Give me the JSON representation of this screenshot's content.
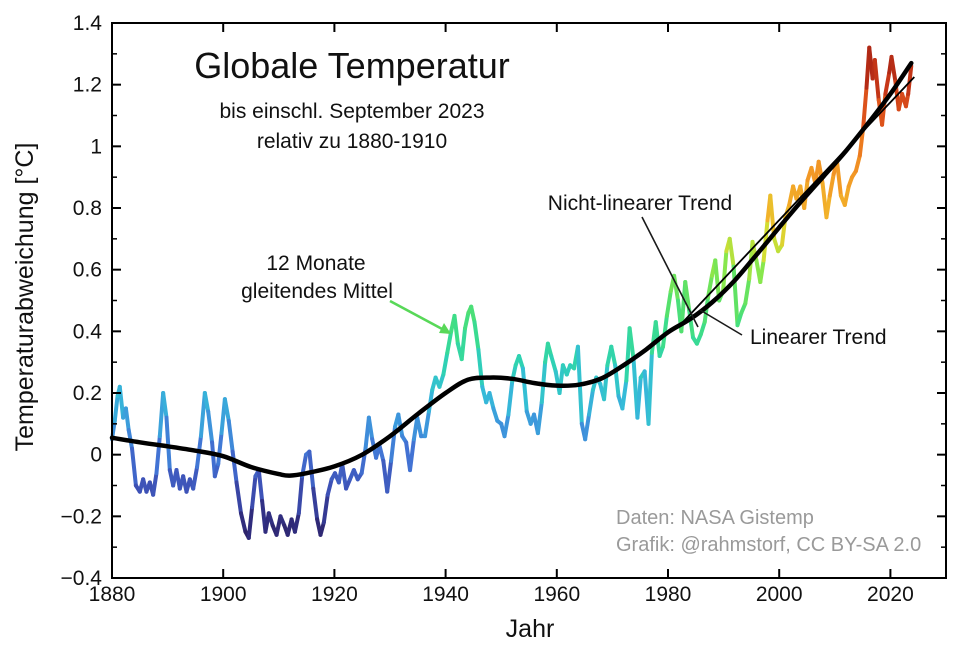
{
  "chart_data": {
    "type": "line",
    "title": "Globale Temperatur",
    "subtitle1": "bis einschl. September 2023",
    "subtitle2": "relativ zu 1880-1910",
    "xlabel": "Jahr",
    "ylabel": "Temperaturabweichung [°C]",
    "xlim": [
      1880,
      2030
    ],
    "ylim": [
      -0.4,
      1.4
    ],
    "grid": false,
    "x_major_ticks": [
      1880,
      1900,
      1920,
      1940,
      1960,
      1980,
      2000,
      2020
    ],
    "y_major_ticks": [
      -0.4,
      -0.2,
      0,
      0.2,
      0.4,
      0.6,
      0.8,
      1,
      1.2,
      1.4
    ],
    "y_major_labels": [
      "−0.4",
      "−0.2",
      "0",
      "0.2",
      "0.4",
      "0.6",
      "0.8",
      "1",
      "1.2",
      "1.4"
    ],
    "y_minor_ticks": [
      -0.3,
      -0.1,
      0.1,
      0.3,
      0.5,
      0.7,
      0.9,
      1.1,
      1.3
    ],
    "annotations": {
      "running_mean_label_line1": "12 Monate",
      "running_mean_label_line2": "gleitendes Mittel",
      "nonlinear_trend_label": "Nicht-linearer Trend",
      "linear_trend_label": "Linearer Trend"
    },
    "credits": {
      "line1": "Daten: NASA Gistemp",
      "line2": "Grafik: @rahmstorf, CC BY-SA 2.0"
    },
    "colors": {
      "annotation_green": "#58d858",
      "credits_gray": "#9a9a9a",
      "trend_black": "#000000"
    },
    "colormap": [
      [
        -0.3,
        "#2a1a58"
      ],
      [
        -0.2,
        "#323186"
      ],
      [
        -0.1,
        "#3e53b8"
      ],
      [
        0.0,
        "#4273d4"
      ],
      [
        0.1,
        "#3d97dc"
      ],
      [
        0.2,
        "#35bdd8"
      ],
      [
        0.3,
        "#2fd2b2"
      ],
      [
        0.4,
        "#3cdd8b"
      ],
      [
        0.5,
        "#58e168"
      ],
      [
        0.6,
        "#8ae74c"
      ],
      [
        0.7,
        "#d6dc32"
      ],
      [
        0.8,
        "#f2b32a"
      ],
      [
        0.9,
        "#f29a26"
      ],
      [
        1.0,
        "#ee8120"
      ],
      [
        1.1,
        "#e25a1c"
      ],
      [
        1.2,
        "#c93818"
      ],
      [
        1.3,
        "#a42113"
      ],
      [
        1.4,
        "#8a1410"
      ]
    ],
    "series": {
      "running_mean": {
        "name": "12 Monate gleitendes Mittel",
        "points": [
          [
            1880.0,
            0.05
          ],
          [
            1880.5,
            0.11
          ],
          [
            1881.0,
            0.19
          ],
          [
            1881.4,
            0.22
          ],
          [
            1882.0,
            0.12
          ],
          [
            1882.5,
            0.15
          ],
          [
            1883.0,
            0.08
          ],
          [
            1883.6,
            0.02
          ],
          [
            1884.3,
            -0.1
          ],
          [
            1885.0,
            -0.12
          ],
          [
            1885.6,
            -0.08
          ],
          [
            1886.2,
            -0.12
          ],
          [
            1886.8,
            -0.09
          ],
          [
            1887.4,
            -0.13
          ],
          [
            1888.0,
            -0.06
          ],
          [
            1888.6,
            0.06
          ],
          [
            1889.2,
            0.2
          ],
          [
            1889.8,
            0.12
          ],
          [
            1890.4,
            -0.05
          ],
          [
            1891.0,
            -0.1
          ],
          [
            1891.6,
            -0.05
          ],
          [
            1892.2,
            -0.11
          ],
          [
            1892.8,
            -0.07
          ],
          [
            1893.4,
            -0.12
          ],
          [
            1894.0,
            -0.08
          ],
          [
            1894.6,
            -0.11
          ],
          [
            1895.3,
            -0.04
          ],
          [
            1896.0,
            0.06
          ],
          [
            1896.7,
            0.2
          ],
          [
            1897.3,
            0.14
          ],
          [
            1898.0,
            0.04
          ],
          [
            1898.5,
            -0.07
          ],
          [
            1899.1,
            -0.03
          ],
          [
            1899.7,
            0.07
          ],
          [
            1900.3,
            0.18
          ],
          [
            1901.0,
            0.11
          ],
          [
            1901.7,
            0.01
          ],
          [
            1902.4,
            -0.09
          ],
          [
            1903.2,
            -0.19
          ],
          [
            1904.0,
            -0.25
          ],
          [
            1904.6,
            -0.27
          ],
          [
            1905.2,
            -0.17
          ],
          [
            1905.8,
            -0.07
          ],
          [
            1906.4,
            -0.05
          ],
          [
            1907.0,
            -0.15
          ],
          [
            1907.6,
            -0.25
          ],
          [
            1908.2,
            -0.19
          ],
          [
            1908.9,
            -0.23
          ],
          [
            1909.6,
            -0.26
          ],
          [
            1910.3,
            -0.2
          ],
          [
            1911.0,
            -0.23
          ],
          [
            1911.6,
            -0.26
          ],
          [
            1912.3,
            -0.21
          ],
          [
            1912.9,
            -0.25
          ],
          [
            1913.6,
            -0.19
          ],
          [
            1914.2,
            -0.07
          ],
          [
            1914.9,
            0.0
          ],
          [
            1915.5,
            0.01
          ],
          [
            1916.2,
            -0.11
          ],
          [
            1916.9,
            -0.21
          ],
          [
            1917.5,
            -0.26
          ],
          [
            1918.1,
            -0.22
          ],
          [
            1918.8,
            -0.13
          ],
          [
            1919.5,
            -0.08
          ],
          [
            1920.1,
            -0.06
          ],
          [
            1920.8,
            -0.09
          ],
          [
            1921.4,
            -0.03
          ],
          [
            1922.1,
            -0.11
          ],
          [
            1922.8,
            -0.08
          ],
          [
            1923.5,
            -0.05
          ],
          [
            1924.2,
            -0.08
          ],
          [
            1924.9,
            -0.06
          ],
          [
            1925.6,
            0.02
          ],
          [
            1926.2,
            0.12
          ],
          [
            1926.8,
            0.05
          ],
          [
            1927.5,
            -0.01
          ],
          [
            1928.1,
            0.03
          ],
          [
            1928.8,
            -0.02
          ],
          [
            1929.5,
            -0.12
          ],
          [
            1930.2,
            -0.02
          ],
          [
            1930.9,
            0.09
          ],
          [
            1931.5,
            0.13
          ],
          [
            1932.2,
            0.06
          ],
          [
            1932.9,
            0.04
          ],
          [
            1933.6,
            -0.05
          ],
          [
            1934.3,
            0.05
          ],
          [
            1934.9,
            0.12
          ],
          [
            1935.6,
            0.06
          ],
          [
            1936.3,
            0.06
          ],
          [
            1937.0,
            0.14
          ],
          [
            1937.6,
            0.21
          ],
          [
            1938.2,
            0.25
          ],
          [
            1938.9,
            0.22
          ],
          [
            1939.6,
            0.26
          ],
          [
            1940.3,
            0.33
          ],
          [
            1941.0,
            0.4
          ],
          [
            1941.6,
            0.45
          ],
          [
            1942.2,
            0.36
          ],
          [
            1942.9,
            0.31
          ],
          [
            1943.5,
            0.41
          ],
          [
            1944.1,
            0.46
          ],
          [
            1944.6,
            0.48
          ],
          [
            1945.2,
            0.43
          ],
          [
            1945.9,
            0.34
          ],
          [
            1946.6,
            0.22
          ],
          [
            1947.3,
            0.17
          ],
          [
            1947.9,
            0.2
          ],
          [
            1948.6,
            0.15
          ],
          [
            1949.3,
            0.11
          ],
          [
            1950.0,
            0.1
          ],
          [
            1950.6,
            0.06
          ],
          [
            1951.3,
            0.13
          ],
          [
            1952.0,
            0.24
          ],
          [
            1952.6,
            0.29
          ],
          [
            1953.2,
            0.32
          ],
          [
            1953.9,
            0.28
          ],
          [
            1954.6,
            0.14
          ],
          [
            1955.3,
            0.1
          ],
          [
            1955.9,
            0.13
          ],
          [
            1956.6,
            0.07
          ],
          [
            1957.3,
            0.17
          ],
          [
            1957.9,
            0.3
          ],
          [
            1958.4,
            0.36
          ],
          [
            1959.0,
            0.32
          ],
          [
            1959.8,
            0.27
          ],
          [
            1960.5,
            0.2
          ],
          [
            1961.1,
            0.29
          ],
          [
            1961.8,
            0.26
          ],
          [
            1962.4,
            0.29
          ],
          [
            1963.1,
            0.28
          ],
          [
            1963.8,
            0.35
          ],
          [
            1964.5,
            0.1
          ],
          [
            1965.1,
            0.05
          ],
          [
            1965.8,
            0.13
          ],
          [
            1966.5,
            0.21
          ],
          [
            1967.1,
            0.25
          ],
          [
            1967.8,
            0.23
          ],
          [
            1968.5,
            0.18
          ],
          [
            1969.1,
            0.29
          ],
          [
            1969.8,
            0.35
          ],
          [
            1970.5,
            0.29
          ],
          [
            1971.1,
            0.19
          ],
          [
            1971.8,
            0.15
          ],
          [
            1972.5,
            0.24
          ],
          [
            1973.1,
            0.41
          ],
          [
            1973.8,
            0.31
          ],
          [
            1974.5,
            0.12
          ],
          [
            1975.1,
            0.25
          ],
          [
            1975.8,
            0.27
          ],
          [
            1976.5,
            0.1
          ],
          [
            1977.1,
            0.33
          ],
          [
            1977.8,
            0.43
          ],
          [
            1978.5,
            0.32
          ],
          [
            1979.1,
            0.35
          ],
          [
            1979.8,
            0.45
          ],
          [
            1980.5,
            0.53
          ],
          [
            1981.1,
            0.58
          ],
          [
            1981.8,
            0.5
          ],
          [
            1982.4,
            0.4
          ],
          [
            1983.1,
            0.56
          ],
          [
            1983.8,
            0.47
          ],
          [
            1984.5,
            0.38
          ],
          [
            1985.2,
            0.36
          ],
          [
            1985.9,
            0.39
          ],
          [
            1986.6,
            0.43
          ],
          [
            1987.2,
            0.51
          ],
          [
            1987.9,
            0.58
          ],
          [
            1988.5,
            0.63
          ],
          [
            1989.2,
            0.5
          ],
          [
            1989.9,
            0.53
          ],
          [
            1990.5,
            0.66
          ],
          [
            1991.1,
            0.7
          ],
          [
            1991.8,
            0.61
          ],
          [
            1992.5,
            0.42
          ],
          [
            1993.2,
            0.46
          ],
          [
            1993.9,
            0.49
          ],
          [
            1994.6,
            0.57
          ],
          [
            1995.2,
            0.69
          ],
          [
            1995.9,
            0.63
          ],
          [
            1996.6,
            0.56
          ],
          [
            1997.2,
            0.63
          ],
          [
            1997.9,
            0.76
          ],
          [
            1998.4,
            0.84
          ],
          [
            1999.1,
            0.7
          ],
          [
            1999.8,
            0.66
          ],
          [
            2000.5,
            0.68
          ],
          [
            2001.1,
            0.77
          ],
          [
            2001.8,
            0.81
          ],
          [
            2002.5,
            0.87
          ],
          [
            2003.1,
            0.83
          ],
          [
            2003.8,
            0.87
          ],
          [
            2004.5,
            0.8
          ],
          [
            2005.1,
            0.89
          ],
          [
            2005.8,
            0.93
          ],
          [
            2006.5,
            0.88
          ],
          [
            2007.1,
            0.95
          ],
          [
            2007.8,
            0.88
          ],
          [
            2008.5,
            0.77
          ],
          [
            2009.1,
            0.84
          ],
          [
            2009.8,
            0.91
          ],
          [
            2010.4,
            0.95
          ],
          [
            2011.1,
            0.84
          ],
          [
            2011.8,
            0.81
          ],
          [
            2012.5,
            0.87
          ],
          [
            2013.1,
            0.9
          ],
          [
            2013.8,
            0.92
          ],
          [
            2014.5,
            0.97
          ],
          [
            2015.1,
            1.06
          ],
          [
            2015.7,
            1.19
          ],
          [
            2016.2,
            1.32
          ],
          [
            2016.8,
            1.22
          ],
          [
            2017.2,
            1.28
          ],
          [
            2017.9,
            1.15
          ],
          [
            2018.5,
            1.07
          ],
          [
            2019.1,
            1.17
          ],
          [
            2019.8,
            1.24
          ],
          [
            2020.2,
            1.29
          ],
          [
            2020.9,
            1.21
          ],
          [
            2021.5,
            1.12
          ],
          [
            2022.1,
            1.17
          ],
          [
            2022.8,
            1.13
          ],
          [
            2023.2,
            1.17
          ],
          [
            2023.75,
            1.26
          ]
        ]
      },
      "nonlinear_trend": {
        "name": "Nicht-linearer Trend",
        "points": [
          [
            1880,
            0.055
          ],
          [
            1885,
            0.04
          ],
          [
            1890,
            0.027
          ],
          [
            1895,
            0.013
          ],
          [
            1900,
            -0.005
          ],
          [
            1905,
            -0.04
          ],
          [
            1910,
            -0.063
          ],
          [
            1912,
            -0.068
          ],
          [
            1915,
            -0.06
          ],
          [
            1920,
            -0.038
          ],
          [
            1925,
            0.0
          ],
          [
            1930,
            0.06
          ],
          [
            1935,
            0.132
          ],
          [
            1940,
            0.2
          ],
          [
            1944,
            0.243
          ],
          [
            1948,
            0.25
          ],
          [
            1952,
            0.246
          ],
          [
            1956,
            0.232
          ],
          [
            1960,
            0.224
          ],
          [
            1964,
            0.227
          ],
          [
            1968,
            0.247
          ],
          [
            1972,
            0.29
          ],
          [
            1976,
            0.34
          ],
          [
            1980,
            0.397
          ],
          [
            1984,
            0.44
          ],
          [
            1988,
            0.495
          ],
          [
            1992,
            0.565
          ],
          [
            1996,
            0.65
          ],
          [
            2000,
            0.737
          ],
          [
            2004,
            0.822
          ],
          [
            2008,
            0.903
          ],
          [
            2012,
            0.985
          ],
          [
            2016,
            1.075
          ],
          [
            2020,
            1.17
          ],
          [
            2023.75,
            1.27
          ]
        ]
      },
      "linear_trend": {
        "name": "Linearer Trend",
        "points": [
          [
            1982,
            0.417
          ],
          [
            2024.3,
            1.225
          ]
        ]
      }
    }
  }
}
